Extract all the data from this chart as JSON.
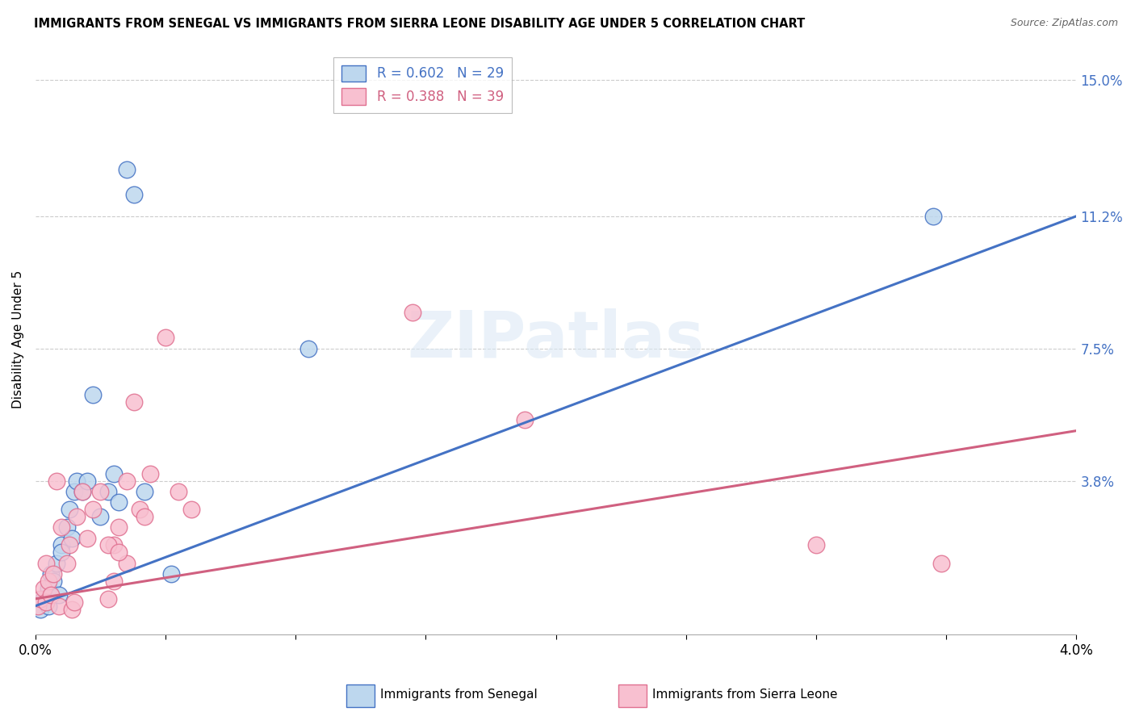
{
  "title": "IMMIGRANTS FROM SENEGAL VS IMMIGRANTS FROM SIERRA LEONE DISABILITY AGE UNDER 5 CORRELATION CHART",
  "source": "Source: ZipAtlas.com",
  "ylabel": "Disability Age Under 5",
  "ytick_labels": [
    "15.0%",
    "11.2%",
    "7.5%",
    "3.8%"
  ],
  "ytick_values": [
    15.0,
    11.2,
    7.5,
    3.8
  ],
  "xlim": [
    0.0,
    4.0
  ],
  "ylim": [
    -0.5,
    16.0
  ],
  "senegal_color": "#BDD7EE",
  "sierra_leone_color": "#F8C0D0",
  "senegal_edge_color": "#4472C4",
  "sierra_leone_edge_color": "#E07090",
  "senegal_line_color": "#4472C4",
  "sierra_leone_line_color": "#D06080",
  "senegal_R": 0.602,
  "senegal_N": 29,
  "sierra_leone_R": 0.388,
  "sierra_leone_N": 39,
  "watermark": "ZIPatlas",
  "senegal_x": [
    0.02,
    0.03,
    0.04,
    0.05,
    0.05,
    0.06,
    0.07,
    0.08,
    0.09,
    0.1,
    0.1,
    0.12,
    0.13,
    0.14,
    0.15,
    0.16,
    0.18,
    0.2,
    0.22,
    0.25,
    0.28,
    0.3,
    0.32,
    0.35,
    0.38,
    0.42,
    0.52,
    1.05,
    3.45
  ],
  "senegal_y": [
    0.2,
    0.5,
    0.4,
    0.8,
    0.3,
    1.2,
    1.0,
    1.5,
    0.6,
    2.0,
    1.8,
    2.5,
    3.0,
    2.2,
    3.5,
    3.8,
    3.5,
    3.8,
    6.2,
    2.8,
    3.5,
    4.0,
    3.2,
    12.5,
    11.8,
    3.5,
    1.2,
    7.5,
    11.2
  ],
  "sierra_leone_x": [
    0.01,
    0.02,
    0.03,
    0.04,
    0.04,
    0.05,
    0.06,
    0.07,
    0.08,
    0.09,
    0.1,
    0.12,
    0.13,
    0.14,
    0.15,
    0.16,
    0.18,
    0.2,
    0.22,
    0.25,
    0.28,
    0.3,
    0.32,
    0.35,
    0.38,
    0.4,
    0.42,
    0.44,
    0.3,
    0.35,
    0.5,
    0.55,
    0.6,
    0.28,
    0.32,
    1.45,
    1.88,
    3.0,
    3.48
  ],
  "sierra_leone_y": [
    0.3,
    0.5,
    0.8,
    0.4,
    1.5,
    1.0,
    0.6,
    1.2,
    3.8,
    0.3,
    2.5,
    1.5,
    2.0,
    0.2,
    0.4,
    2.8,
    3.5,
    2.2,
    3.0,
    3.5,
    0.5,
    2.0,
    2.5,
    3.8,
    6.0,
    3.0,
    2.8,
    4.0,
    1.0,
    1.5,
    7.8,
    3.5,
    3.0,
    2.0,
    1.8,
    8.5,
    5.5,
    2.0,
    1.5
  ],
  "blue_line_x": [
    0.0,
    4.0
  ],
  "blue_line_y": [
    0.3,
    11.2
  ],
  "pink_line_x": [
    0.0,
    4.0
  ],
  "pink_line_y": [
    0.5,
    5.2
  ],
  "xtick_positions": [
    0.0,
    0.5,
    1.0,
    1.5,
    2.0,
    2.5,
    3.0,
    3.5,
    4.0
  ],
  "background_color": "#ffffff",
  "grid_color": "#cccccc"
}
